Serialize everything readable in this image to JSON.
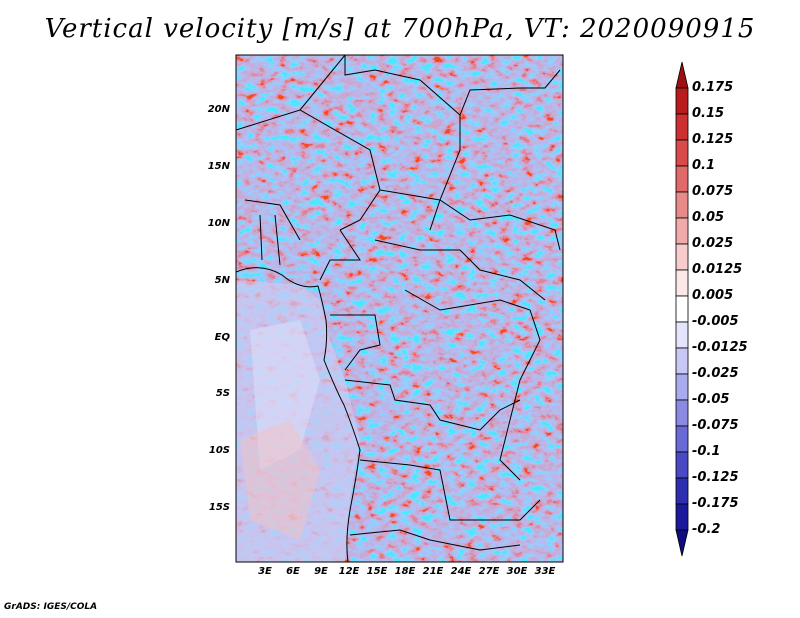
{
  "title": "Vertical velocity [m/s] at 700hPa, VT: 2020090915",
  "credit": "GrADS: IGES/COLA",
  "lat_labels": [
    "20N",
    "15N",
    "10N",
    "5N",
    "EQ",
    "5S",
    "10S",
    "15S"
  ],
  "lon_labels": [
    "3E",
    "6E",
    "9E",
    "12E",
    "15E",
    "18E",
    "21E",
    "24E",
    "27E",
    "30E",
    "33E"
  ],
  "colorbar": {
    "labels": [
      "0.175",
      "0.15",
      "0.125",
      "0.1",
      "0.075",
      "0.05",
      "0.025",
      "0.0125",
      "0.005",
      "-0.005",
      "-0.0125",
      "-0.025",
      "-0.05",
      "-0.075",
      "-0.1",
      "-0.125",
      "-0.175",
      "-0.2"
    ],
    "colors": [
      "#9e0f12",
      "#b81c1c",
      "#cc3030",
      "#d94a4a",
      "#e06a6a",
      "#e88a8a",
      "#f0aaaa",
      "#f7cccc",
      "#fde8e8",
      "#ffffff",
      "#e4e4fa",
      "#c8c8f5",
      "#aaaaee",
      "#8a8ae3",
      "#6a6ad6",
      "#4a4ac4",
      "#2e2eb0",
      "#1a1a9a",
      "#0e0e82"
    ]
  }
}
